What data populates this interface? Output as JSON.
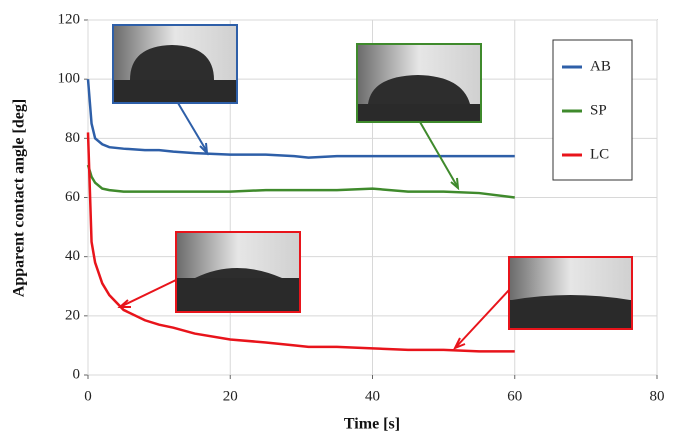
{
  "chart_data": {
    "type": "line",
    "x_label": "Time [s]",
    "y_label": "Apparent contact angle [deg]",
    "x": [
      0,
      0.5,
      1,
      2,
      3,
      5,
      8,
      10,
      12,
      15,
      20,
      25,
      29,
      31,
      35,
      40,
      45,
      50,
      55,
      60
    ],
    "series": [
      {
        "name": "AB",
        "color": "#2e5fa8",
        "values": [
          100,
          85,
          80,
          78,
          77,
          76.5,
          76,
          76,
          75.5,
          75,
          74.5,
          74.5,
          74,
          73.5,
          74,
          74,
          74,
          74,
          74,
          74
        ]
      },
      {
        "name": "SP",
        "color": "#3f8a2c",
        "values": [
          71,
          67,
          65,
          63,
          62.5,
          62,
          62,
          62,
          62,
          62,
          62,
          62.5,
          62.5,
          62.5,
          62.5,
          63,
          62,
          62,
          61.5,
          60
        ]
      },
      {
        "name": "LC",
        "color": "#e8141b",
        "values": [
          82,
          45,
          38,
          31,
          27,
          22,
          18.5,
          17,
          16,
          14,
          12,
          11,
          10,
          9.5,
          9.5,
          9,
          8.5,
          8.5,
          8,
          8
        ]
      }
    ],
    "xlim": [
      0,
      80
    ],
    "xticks": [
      0,
      20,
      40,
      60,
      80
    ],
    "ylim": [
      0,
      120
    ],
    "yticks": [
      0,
      20,
      40,
      60,
      80,
      100,
      120
    ],
    "grid": true,
    "legend": "top-right"
  }
}
